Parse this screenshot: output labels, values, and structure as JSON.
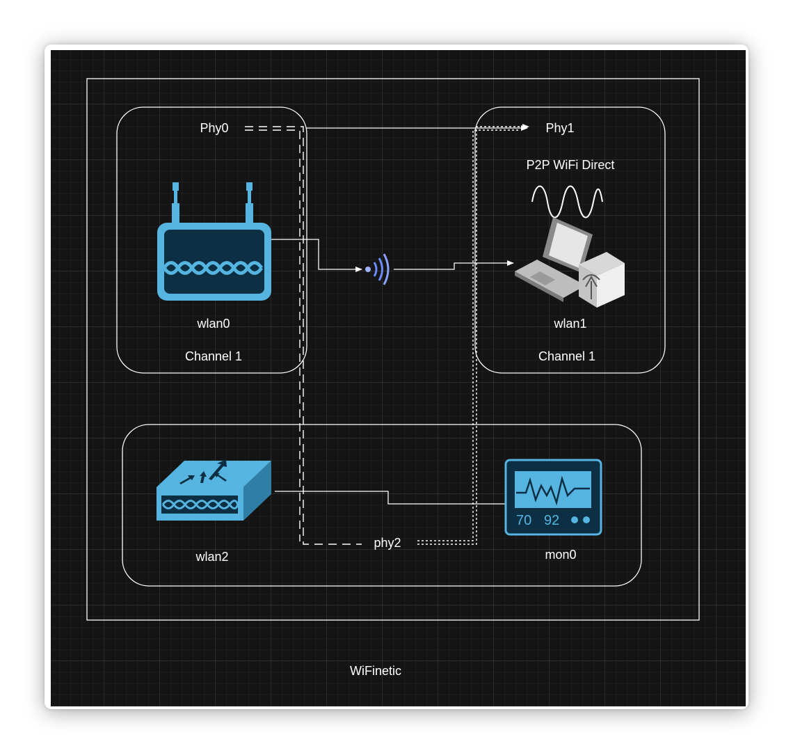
{
  "diagram": {
    "caption": "WiFinetic",
    "phy0": {
      "label": "Phy0",
      "interface": "wlan0",
      "channel": "Channel 1"
    },
    "phy1": {
      "label": "Phy1",
      "mode": "P2P WiFi Direct",
      "interface": "wlan1",
      "channel": "Channel 1"
    },
    "phy2": {
      "label": "phy2",
      "interface_left": "wlan2",
      "interface_right": "mon0"
    },
    "monitor_readout": {
      "value_a": "70",
      "value_b": "92"
    }
  },
  "colors": {
    "background": "#141414",
    "line": "#ffffff",
    "device_blue": "#56b4e0",
    "device_dark": "#0d3a52",
    "signal": "#6b8cff"
  },
  "icons": {
    "router": "router-icon",
    "signal": "wireless-signal-icon",
    "wave": "sine-wave-icon",
    "laptop": "laptop-with-access-point-icon",
    "switch": "wireless-switch-icon",
    "monitor": "heart-rate-monitor-icon"
  }
}
